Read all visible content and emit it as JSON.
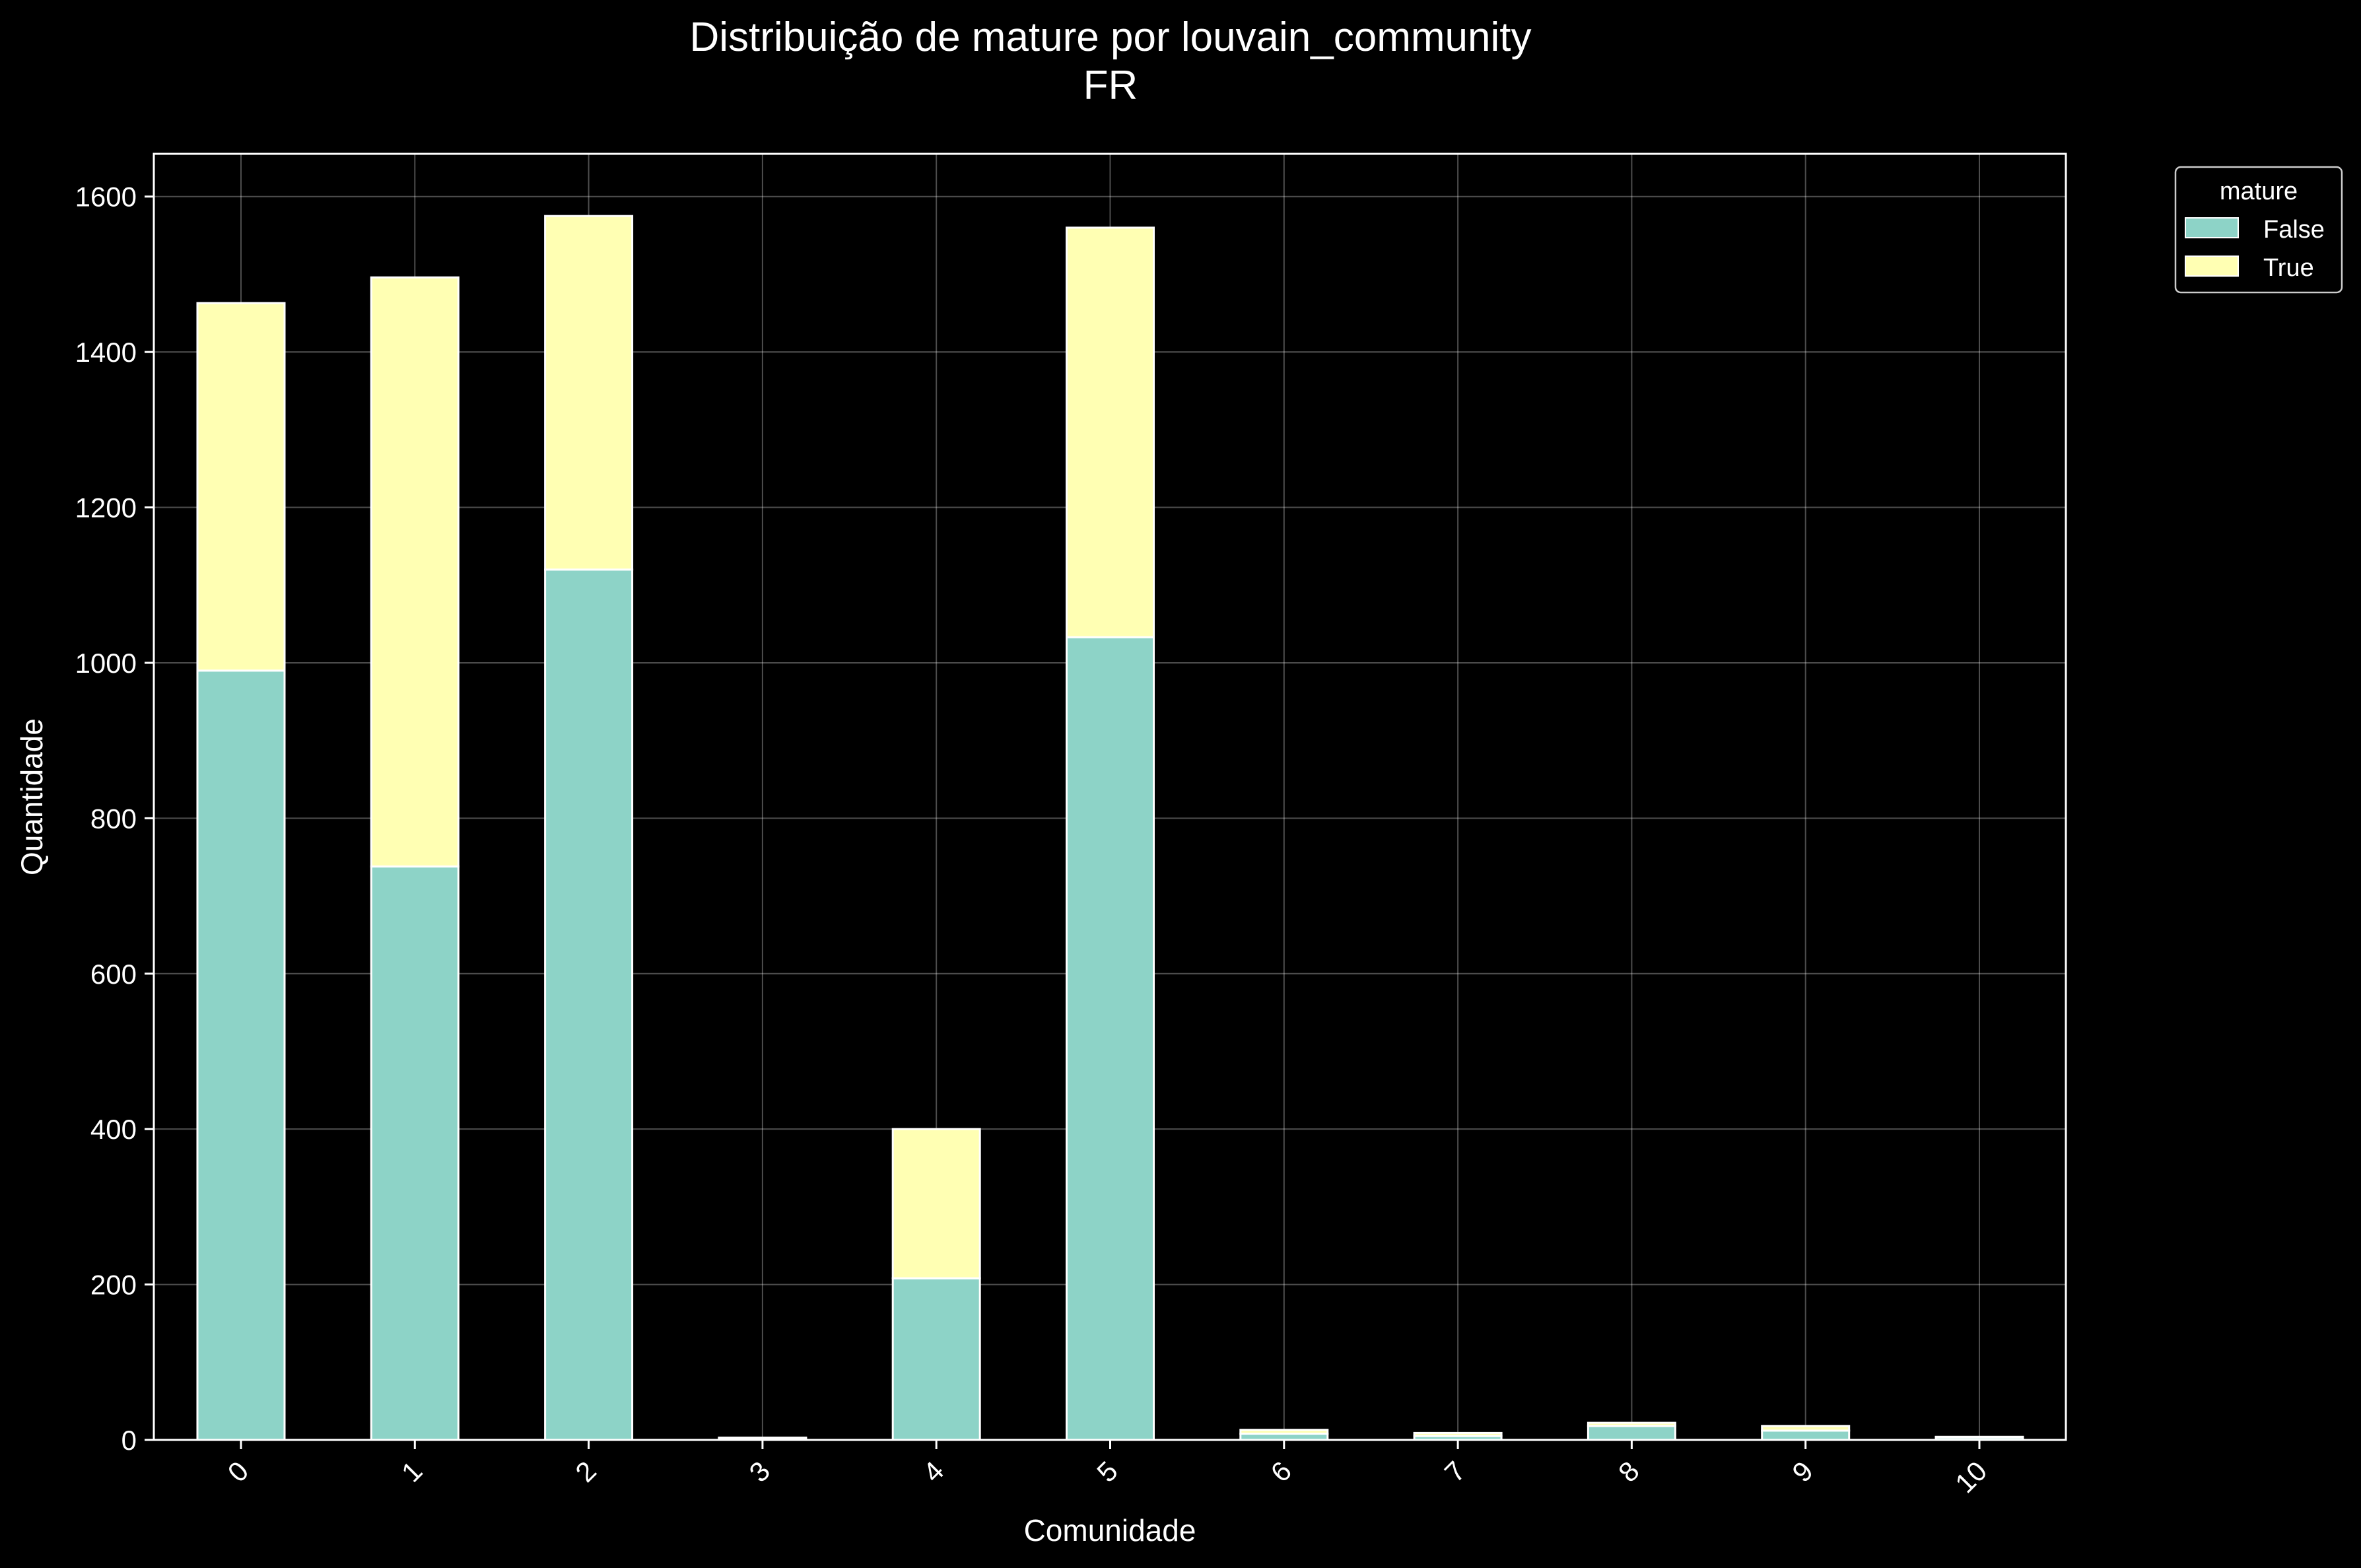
{
  "chart_data": {
    "type": "bar",
    "stacked": true,
    "title": "Distribuição de mature por louvain_community",
    "subtitle": "FR",
    "xlabel": "Comunidade",
    "ylabel": "Quantidade",
    "categories": [
      "0",
      "1",
      "2",
      "3",
      "4",
      "5",
      "6",
      "7",
      "8",
      "9",
      "10"
    ],
    "series": [
      {
        "name": "False",
        "color": "#8dd3c7",
        "values": [
          990,
          738,
          1120,
          2,
          208,
          1033,
          8,
          5,
          18,
          12,
          3
        ]
      },
      {
        "name": "True",
        "color": "#ffffb3",
        "values": [
          473,
          758,
          455,
          1,
          192,
          527,
          5,
          4,
          4,
          6,
          1
        ]
      }
    ],
    "ylim": [
      0,
      1655
    ],
    "yticks": [
      "0",
      "200",
      "400",
      "600",
      "800",
      "1000",
      "1200",
      "1400",
      "1600"
    ],
    "grid": true,
    "legend": {
      "title": "mature",
      "placement": "outside-top-right"
    },
    "background": "#000000",
    "foreground": "#ffffff"
  }
}
